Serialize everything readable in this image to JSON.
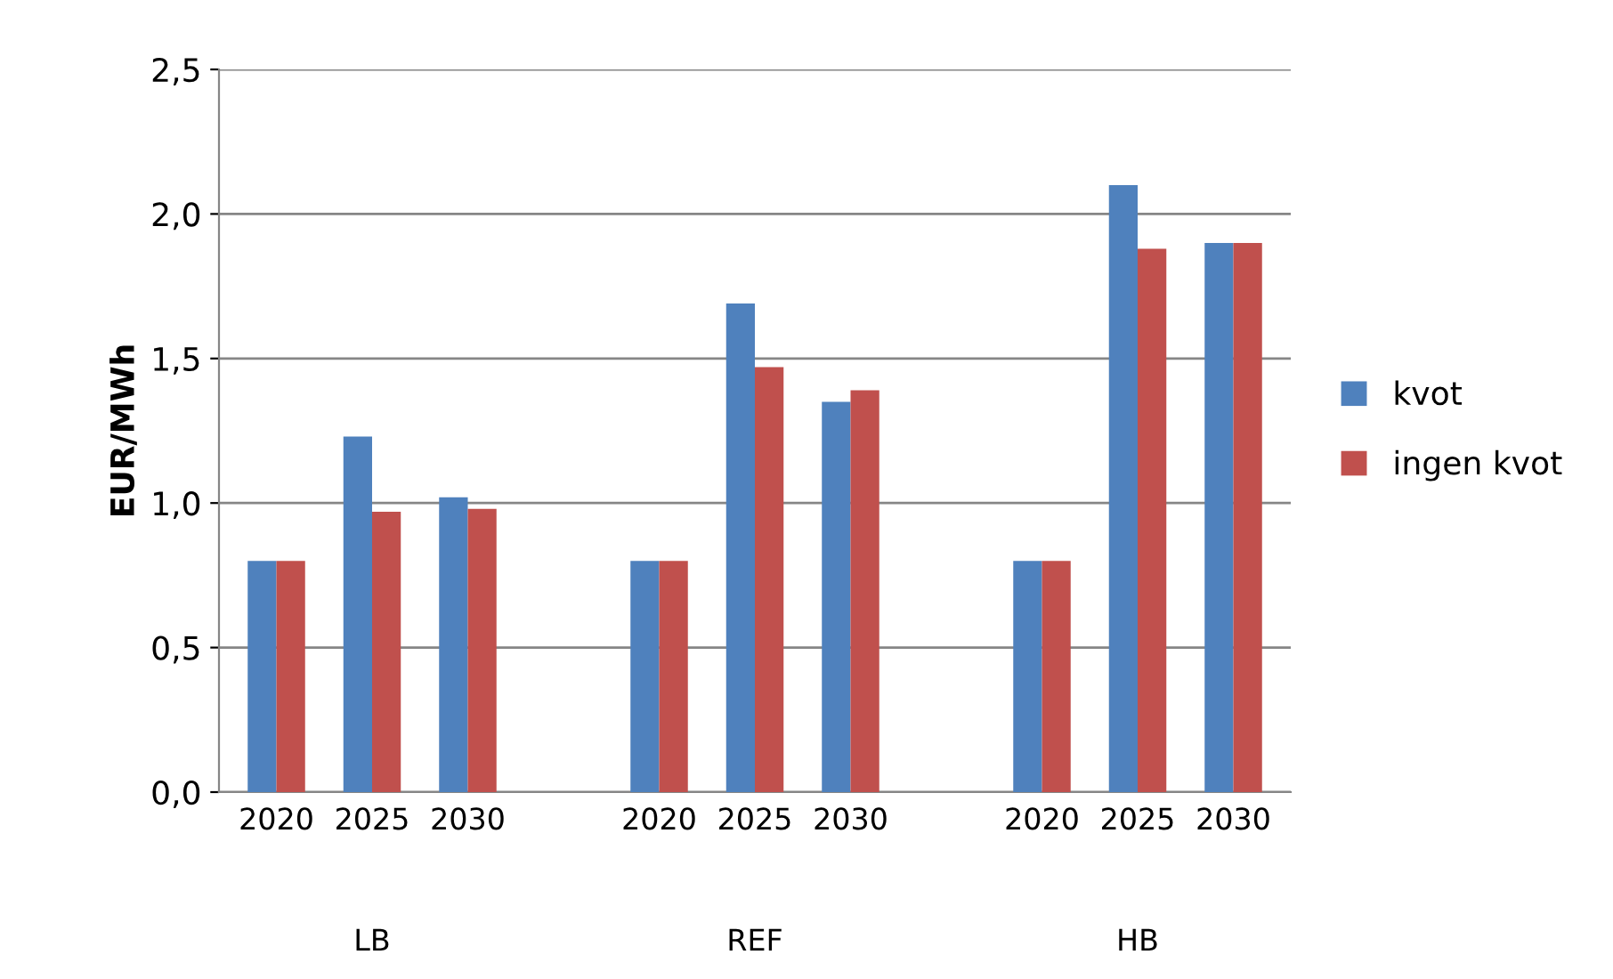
{
  "chart_data": {
    "type": "bar",
    "ylabel": "EUR/MWh",
    "categories": [
      "2020",
      "2025",
      "2030",
      null,
      "2020",
      "2025",
      "2030",
      null,
      "2020",
      "2025",
      "2030"
    ],
    "series": [
      {
        "name": "kvot",
        "color": "#4f81bd",
        "values": [
          0.8,
          1.23,
          1.02,
          null,
          0.8,
          1.69,
          1.35,
          null,
          0.8,
          2.1,
          1.9
        ]
      },
      {
        "name": "ingen kvot",
        "color": "#c0504d",
        "values": [
          0.8,
          0.97,
          0.98,
          null,
          0.8,
          1.47,
          1.39,
          null,
          0.8,
          1.88,
          1.9
        ]
      }
    ],
    "annotations": [
      "LB",
      "REF",
      "HB"
    ],
    "ylim": [
      0,
      2.5
    ],
    "yticks": [
      {
        "value": 0,
        "label": "0,0"
      },
      {
        "value": 0.5,
        "label": "0,5"
      },
      {
        "value": 1.0,
        "label": "1,0"
      },
      {
        "value": 1.5,
        "label": "1,5"
      },
      {
        "value": 2.0,
        "label": "2,0"
      },
      {
        "value": 2.5,
        "label": "2,5"
      }
    ],
    "grid": "y",
    "legend": "right"
  }
}
